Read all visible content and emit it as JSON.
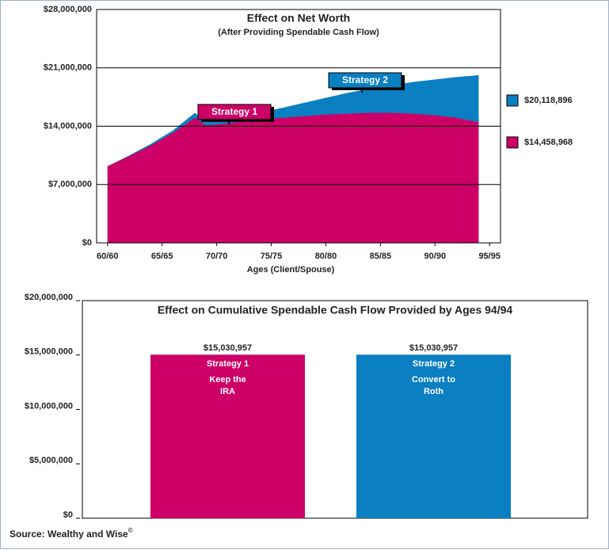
{
  "chart_data": [
    {
      "type": "area",
      "title": "Effect on Net Worth",
      "subtitle": "(After Providing Spendable Cash Flow)",
      "x_label": "Ages (Client/Spouse)",
      "x": [
        60,
        62,
        64,
        66,
        68,
        69,
        70,
        72,
        74,
        76,
        78,
        80,
        82,
        84,
        86,
        88,
        90,
        92,
        94
      ],
      "xlim": [
        59,
        96
      ],
      "xticks": [
        {
          "value": 60,
          "label": "60/60"
        },
        {
          "value": 65,
          "label": "65/65"
        },
        {
          "value": 70,
          "label": "70/70"
        },
        {
          "value": 75,
          "label": "75/75"
        },
        {
          "value": 80,
          "label": "80/80"
        },
        {
          "value": 85,
          "label": "85/85"
        },
        {
          "value": 90,
          "label": "90/90"
        },
        {
          "value": 95,
          "label": "95/95"
        }
      ],
      "ylim": [
        0,
        28000000
      ],
      "yticks": [
        {
          "value": 0,
          "label": "$0"
        },
        {
          "value": 7000000,
          "label": "$7,000,000"
        },
        {
          "value": 14000000,
          "label": "$14,000,000"
        },
        {
          "value": 21000000,
          "label": "$21,000,000"
        },
        {
          "value": 28000000,
          "label": "$28,000,000"
        }
      ],
      "grid": true,
      "series": [
        {
          "name": "Strategy 2",
          "color": "#0a7fc2",
          "legend_label": "$20,118,896",
          "values": [
            9200000,
            10500000,
            11900000,
            13500000,
            15600000,
            14500000,
            14600000,
            15000000,
            15600000,
            16200000,
            16800000,
            17400000,
            18000000,
            18500000,
            18900000,
            19300000,
            19600000,
            19900000,
            20118896
          ]
        },
        {
          "name": "Strategy 1",
          "color": "#cc0066",
          "legend_label": "$14,458,968",
          "values": [
            9200000,
            10400000,
            11700000,
            13200000,
            15000000,
            14100000,
            14200000,
            14500000,
            14800000,
            15000000,
            15200000,
            15400000,
            15500000,
            15600000,
            15600000,
            15500000,
            15300000,
            15000000,
            14458968
          ]
        }
      ]
    },
    {
      "type": "bar",
      "title": "Effect on Cumulative Spendable Cash Flow Provided by Ages 94/94",
      "categories": [
        "Strategy 1",
        "Strategy 2"
      ],
      "descriptions": [
        [
          "Keep the",
          "IRA"
        ],
        [
          "Convert to",
          "Roth"
        ]
      ],
      "values": [
        15030957,
        15030957
      ],
      "value_labels": [
        "$15,030,957",
        "$15,030,957"
      ],
      "colors": [
        "#cc0066",
        "#0a7fc2"
      ],
      "ylim": [
        0,
        20000000
      ],
      "yticks": [
        {
          "value": 0,
          "label": "$0"
        },
        {
          "value": 5000000,
          "label": "$5,000,000"
        },
        {
          "value": 10000000,
          "label": "$10,000,000"
        },
        {
          "value": 15000000,
          "label": "$15,000,000"
        },
        {
          "value": 20000000,
          "label": "$20,000,000"
        }
      ],
      "grid": false
    }
  ],
  "source": "Source: Wealthy and Wise",
  "source_mark": "©"
}
